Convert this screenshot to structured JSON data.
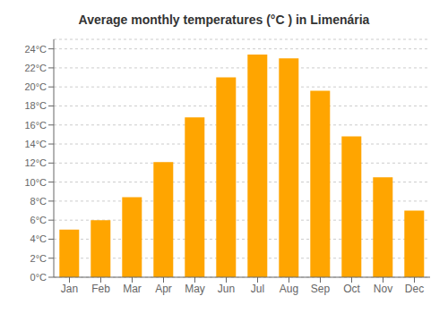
{
  "chart_data": {
    "type": "bar",
    "title": "Average monthly temperatures (°C ) in Limenária",
    "categories": [
      "Jan",
      "Feb",
      "Mar",
      "Apr",
      "May",
      "Jun",
      "Jul",
      "Aug",
      "Sep",
      "Oct",
      "Nov",
      "Dec"
    ],
    "values": [
      5.0,
      6.0,
      8.4,
      12.1,
      16.8,
      21.0,
      23.4,
      23.0,
      19.6,
      14.8,
      10.5,
      7.0
    ],
    "color": "#FFA500",
    "ylim": [
      0,
      25
    ],
    "yticks": [
      {
        "value": 0,
        "label": "0°C"
      },
      {
        "value": 2,
        "label": "2°C"
      },
      {
        "value": 4,
        "label": "4°C"
      },
      {
        "value": 6,
        "label": "6°C"
      },
      {
        "value": 8,
        "label": "8°C"
      },
      {
        "value": 10,
        "label": "10°C"
      },
      {
        "value": 12,
        "label": "12°C"
      },
      {
        "value": 14,
        "label": "14°C"
      },
      {
        "value": 16,
        "label": "16°C"
      },
      {
        "value": 18,
        "label": "18°C"
      },
      {
        "value": 20,
        "label": "20°C"
      },
      {
        "value": 22,
        "label": "22°C"
      },
      {
        "value": 24,
        "label": "24°C"
      }
    ],
    "grid": true
  }
}
